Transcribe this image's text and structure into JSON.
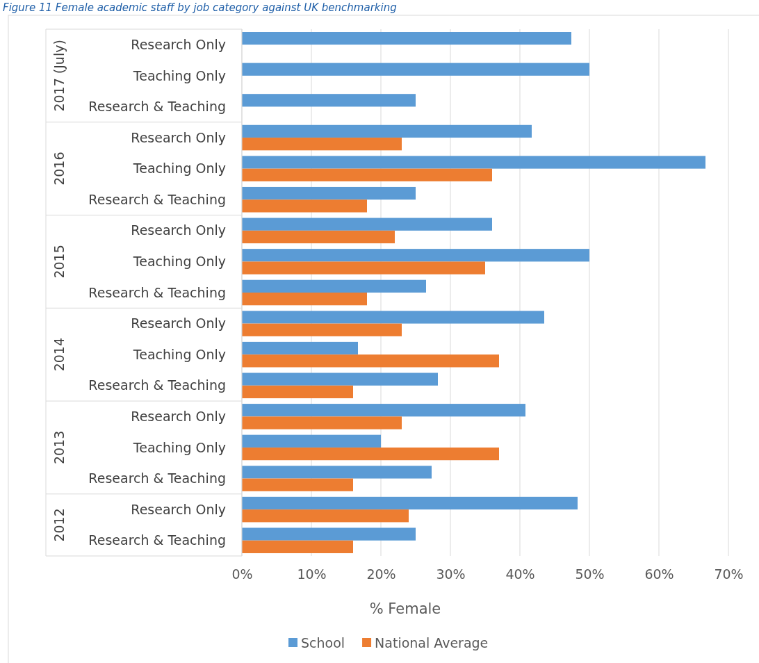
{
  "chart_data": {
    "type": "bar",
    "orientation": "horizontal",
    "title": "Figure 11 Female academic staff by job category against UK benchmarking",
    "categories": [
      "Research Only",
      "Teaching Only",
      "Research & Teaching",
      "Research Only",
      "Teaching Only",
      "Research & Teaching",
      "Research Only",
      "Teaching Only",
      "Research & Teaching",
      "Research Only",
      "Teaching Only",
      "Research & Teaching",
      "Research Only",
      "Teaching Only",
      "Research & Teaching",
      "Research Only",
      "Research & Teaching"
    ],
    "series": [
      {
        "name": "School",
        "color": "#5b9bd5",
        "values": [
          47.4,
          50,
          25,
          41.7,
          66.7,
          25,
          36,
          50,
          26.5,
          43.5,
          16.7,
          28.2,
          40.8,
          20,
          27.3,
          48.3,
          25
        ]
      },
      {
        "name": "National Average",
        "color": "#ed7d31",
        "values": [
          null,
          null,
          null,
          23,
          36,
          18,
          22,
          35,
          18,
          23,
          37,
          16,
          23,
          37,
          16,
          24,
          16
        ]
      }
    ],
    "annotations": [
      "2017 (July)",
      "2016",
      "2015",
      "2014",
      "2013",
      "2012"
    ],
    "xlabel": "% Female",
    "xlim": [
      0,
      70
    ],
    "xticks": [
      {
        "value": 0,
        "label": "0%"
      },
      {
        "value": 10,
        "label": "10%"
      },
      {
        "value": 20,
        "label": "20%"
      },
      {
        "value": 30,
        "label": "30%"
      },
      {
        "value": 40,
        "label": "40%"
      },
      {
        "value": 50,
        "label": "50%"
      },
      {
        "value": 60,
        "label": "60%"
      },
      {
        "value": 70,
        "label": "70%"
      }
    ],
    "grid": "x",
    "legend": "bottom"
  }
}
